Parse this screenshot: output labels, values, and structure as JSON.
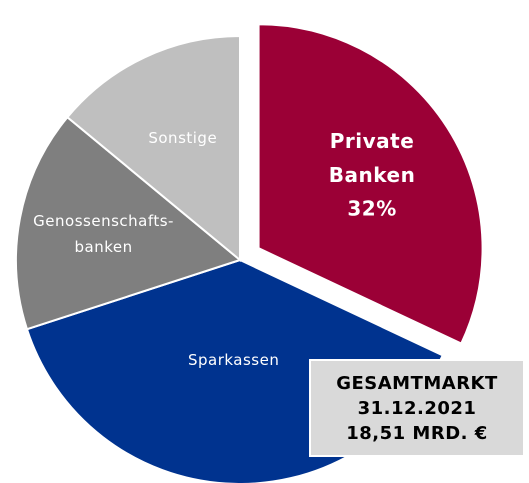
{
  "chart_data": {
    "type": "pie",
    "categories": [
      "Private Banken",
      "Sparkassen",
      "Genossenschafts-banken",
      "Sonstige"
    ],
    "values": [
      32,
      38,
      16,
      14
    ],
    "value_labels": [
      "32%",
      null,
      null,
      null
    ],
    "colors": [
      "#9b0036",
      "#00338f",
      "#7f7f7f",
      "#bfbfbf"
    ],
    "annotation": [
      "GESAMTMARKT",
      "31.12.2021",
      "18,51 MRD. €"
    ]
  }
}
